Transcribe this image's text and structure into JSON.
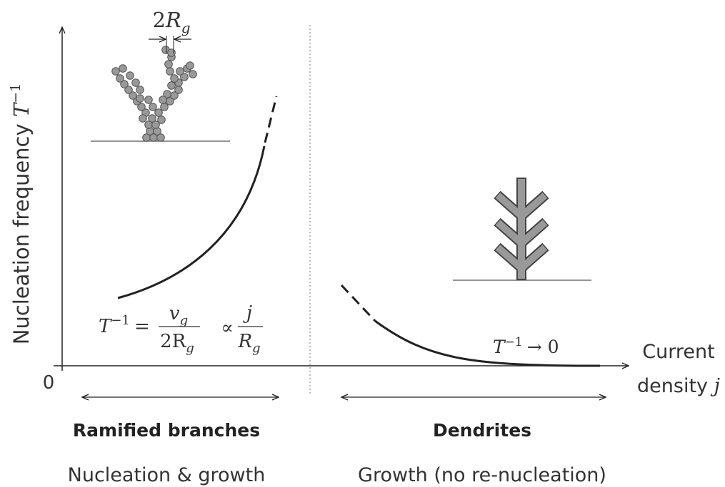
{
  "y_axis_label": {
    "text": "Nucleation frequency",
    "symbol": "T",
    "exponent": "−1"
  },
  "x_axis_label": {
    "line1": "Current",
    "line2": "density",
    "symbol": "j"
  },
  "origin": "0",
  "grain_diameter": {
    "coefficient": "2",
    "symbol": "R",
    "subscript": "g"
  },
  "rate_formula": {
    "lhs": "T",
    "lhs_exponent": "−1",
    "equals": "=",
    "num1": "v",
    "num1_subscript": "g",
    "den1": "2R",
    "den1_subscript": "g",
    "proportional": "∝",
    "num2": "j",
    "den2": "R",
    "den2_subscript": "g"
  },
  "limit": {
    "symbol": "T",
    "exponent": "−1",
    "arrow": "→ 0"
  },
  "regions": [
    {
      "name": "Ramified branches",
      "mode": "Nucleation & growth"
    },
    {
      "name": "Dendrites",
      "mode": "Growth (no re-nucleation)"
    }
  ]
}
